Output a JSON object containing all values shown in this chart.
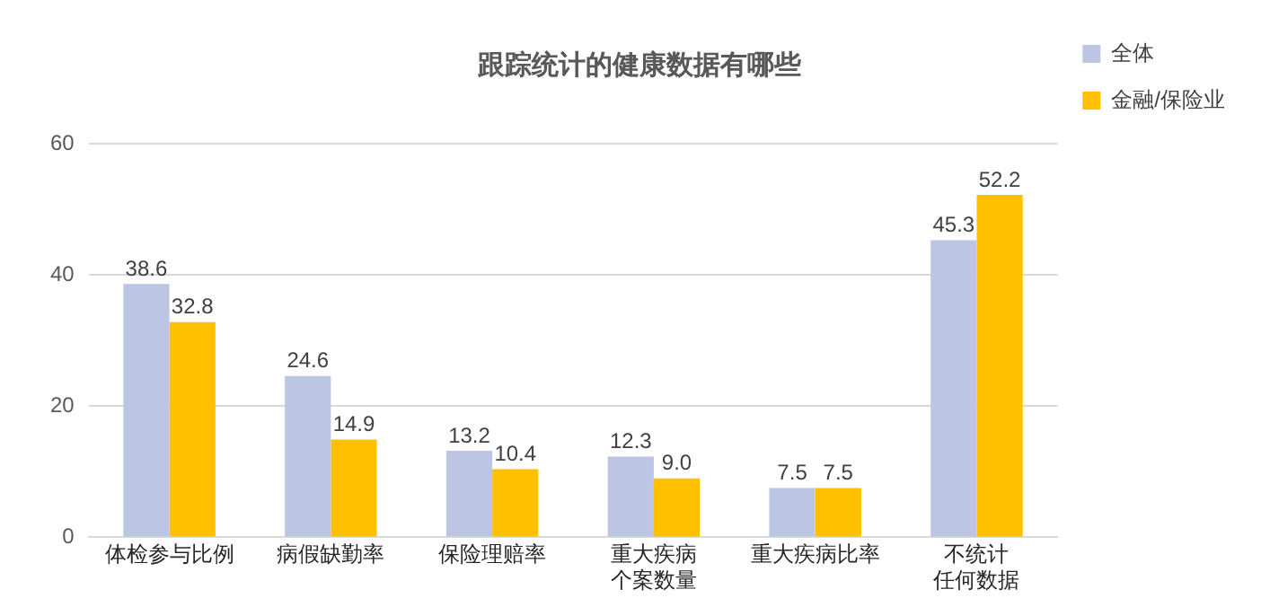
{
  "chart_data": {
    "type": "bar",
    "title": "跟踪统计的健康数据有哪些",
    "categories": [
      "体检参与比例",
      "病假缺勤率",
      "保险理赔率",
      "重大疾病个案数量",
      "重大疾病比率",
      "不统计任何数据"
    ],
    "series": [
      {
        "name": "全体",
        "color": "#bcc5e3",
        "values": [
          38.6,
          24.6,
          13.2,
          12.3,
          7.5,
          45.3
        ]
      },
      {
        "name": "金融/保险业",
        "color": "#ffc000",
        "values": [
          32.8,
          14.9,
          10.4,
          9.0,
          7.5,
          52.2
        ]
      }
    ],
    "value_labels": [
      [
        "38.6",
        "24.6",
        "13.2",
        "12.3",
        "7.5",
        "45.3"
      ],
      [
        "32.8",
        "14.9",
        "10.4",
        "9.0",
        "7.5",
        "52.2"
      ]
    ],
    "ylim": [
      0,
      60
    ],
    "yticks": [
      0,
      20,
      40,
      60
    ],
    "grid": "y",
    "legend": "right"
  }
}
